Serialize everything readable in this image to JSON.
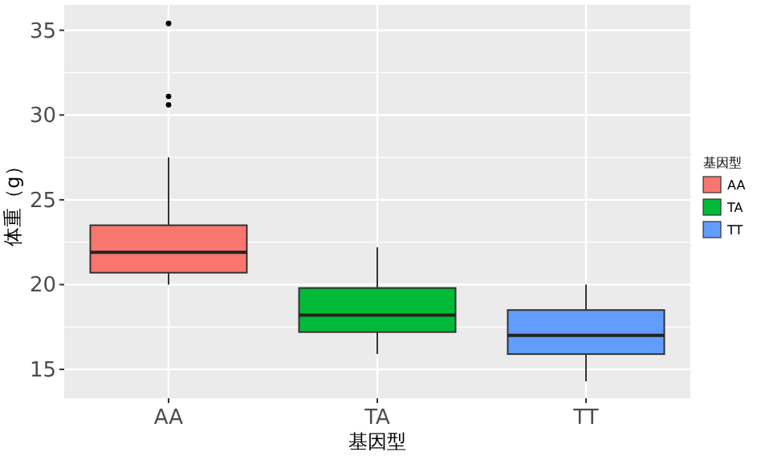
{
  "chart_data": {
    "type": "box",
    "xlabel": "基因型",
    "ylabel": "体重（g）",
    "legend_title": "基因型",
    "categories": [
      "AA",
      "TA",
      "TT"
    ],
    "series": [
      {
        "name": "AA",
        "color": "#f8766d",
        "boxes": [
          {
            "low": 20.0,
            "q1": 20.7,
            "median": 21.9,
            "q3": 23.5,
            "high": 27.5,
            "outliers": [
              35.4,
              31.1,
              30.6
            ]
          },
          null,
          null
        ]
      },
      {
        "name": "TA",
        "color": "#00ba38",
        "boxes": [
          null,
          {
            "low": 15.9,
            "q1": 17.2,
            "median": 18.2,
            "q3": 19.8,
            "high": 22.2
          },
          null
        ]
      },
      {
        "name": "TT",
        "color": "#619cff",
        "boxes": [
          null,
          null,
          {
            "low": 14.3,
            "q1": 15.9,
            "median": 17.0,
            "q3": 18.5,
            "high": 20.0
          }
        ]
      }
    ],
    "ylim": [
      13.3,
      36.5
    ],
    "yticks": [
      15,
      20,
      25,
      30,
      35
    ],
    "grid": true,
    "legend": "right"
  }
}
